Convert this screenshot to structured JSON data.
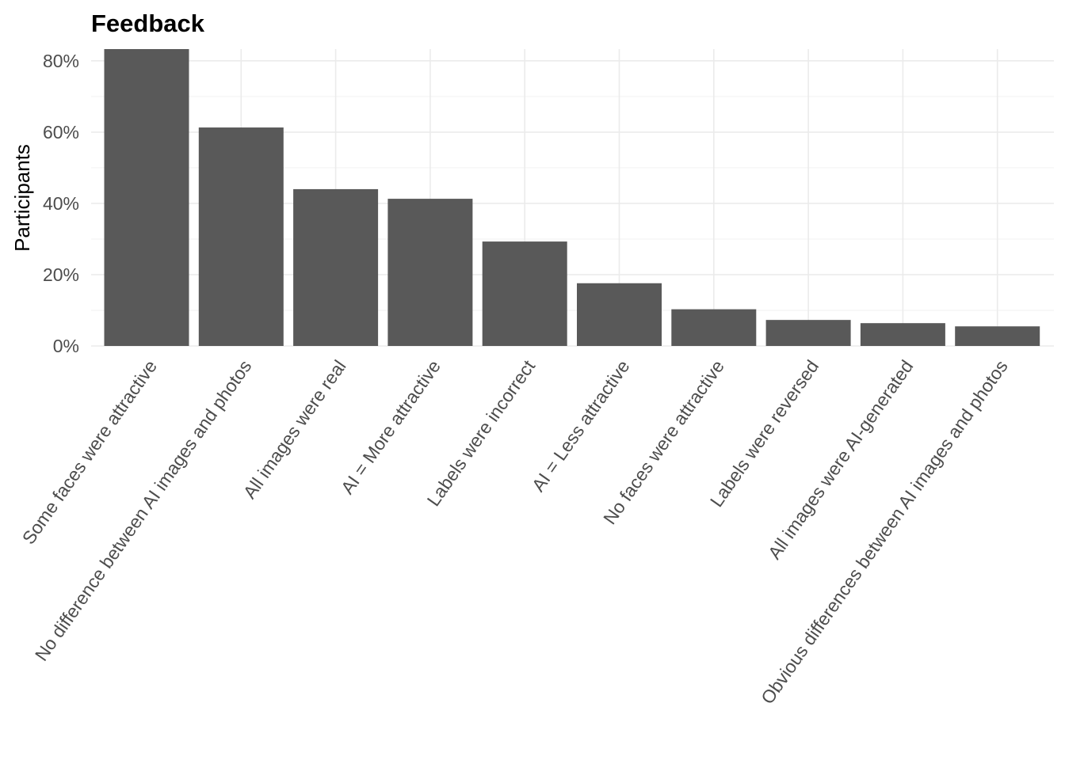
{
  "chart_data": {
    "type": "bar",
    "title": "Feedback",
    "xlabel": "",
    "ylabel": "Participants",
    "categories": [
      "Some faces were attractive",
      "No difference between AI images and photos",
      "All images were real",
      "AI = More attractive",
      "Labels were incorrect",
      "AI = Less attractive",
      "No faces were attractive",
      "Labels were reversed",
      "All images were AI-generated",
      "Obvious differences between AI images and photos"
    ],
    "values": [
      83.3,
      61.3,
      44.0,
      41.3,
      29.3,
      17.6,
      10.3,
      7.3,
      6.4,
      5.5
    ],
    "ylim": [
      0,
      83.3
    ],
    "y_ticks": [
      0,
      20,
      40,
      60,
      80
    ],
    "y_tick_labels": [
      "0%",
      "20%",
      "40%",
      "60%",
      "80%"
    ],
    "bar_color": "#595959",
    "grid": true,
    "legend": "none"
  }
}
